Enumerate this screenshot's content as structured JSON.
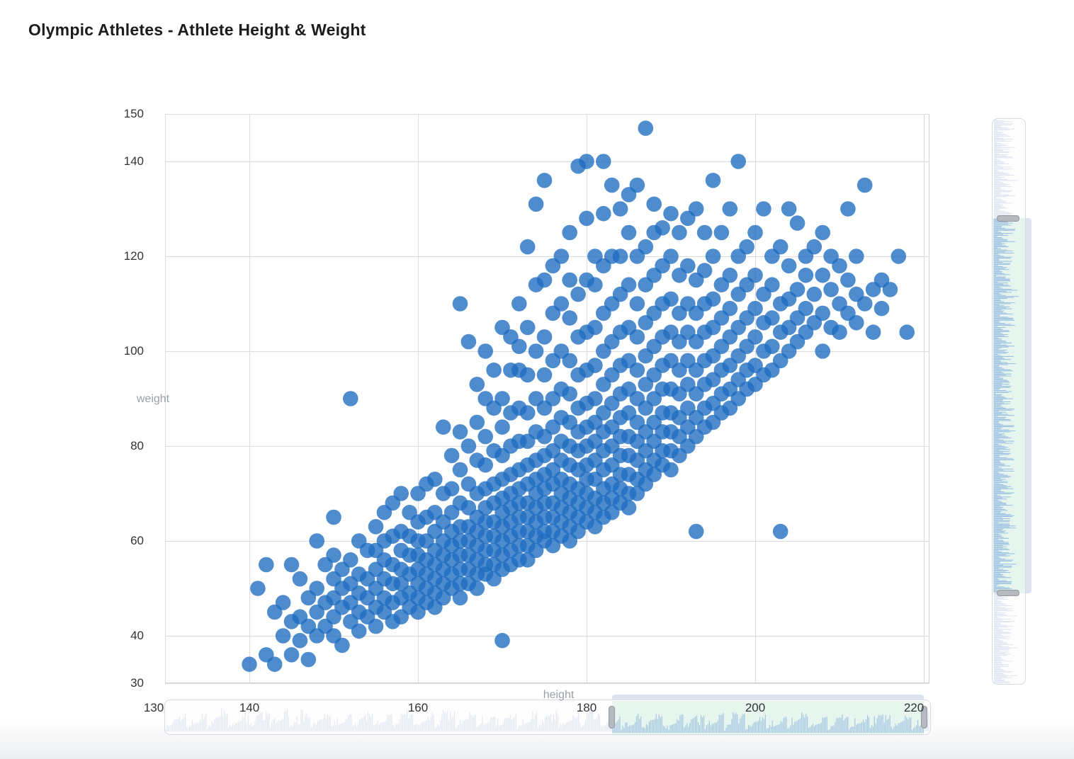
{
  "page": {
    "title": "Olympic Athletes - Athlete Height & Weight"
  },
  "axes": {
    "x_name": "height",
    "y_name": "weight",
    "x_ticks": [
      130,
      140,
      160,
      180,
      200,
      220
    ],
    "y_ticks": [
      150,
      140,
      120,
      100,
      80,
      60,
      40,
      30
    ]
  },
  "datazoom": {
    "x": {
      "start": 183,
      "end": 220
    },
    "y": {
      "start": 49,
      "end": 128
    }
  },
  "colors": {
    "dot": "#1d6cc0",
    "dot_opacity": 0.78,
    "grid": "#dadcdf",
    "plot_border": "#cfd3d7",
    "selected_fill": "#e6f5ed",
    "shadow_unselected": "#e1e5ef",
    "shadow_selected": "#9fc2e2",
    "handle_fill": "#b7b9c1",
    "move_bar": "#dde3f1",
    "tick_text": "#333333",
    "axis_name_text": "#9ba0a7"
  },
  "chart_data": {
    "type": "scatter",
    "title": "Olympic Athletes - Athlete Height & Weight",
    "xlabel": "height",
    "ylabel": "weight",
    "xlim": [
      130,
      220
    ],
    "ylim": [
      30,
      150
    ],
    "grid": true,
    "x_ticks": [
      130,
      140,
      160,
      180,
      200,
      220
    ],
    "y_ticks": [
      30,
      40,
      60,
      80,
      100,
      120,
      140,
      150
    ],
    "points_by_height": {
      "140": [
        34
      ],
      "141": [
        50
      ],
      "142": [
        36,
        55
      ],
      "143": [
        34,
        45
      ],
      "144": [
        40,
        47
      ],
      "145": [
        36,
        43,
        55
      ],
      "146": [
        39,
        44,
        52
      ],
      "147": [
        35,
        42,
        48
      ],
      "148": [
        40,
        45,
        50,
        60
      ],
      "149": [
        42,
        47,
        55
      ],
      "150": [
        40,
        44,
        48,
        52,
        57,
        65
      ],
      "151": [
        38,
        46,
        50,
        54
      ],
      "152": [
        43,
        47,
        51,
        56,
        90
      ],
      "153": [
        41,
        45,
        49,
        53,
        60
      ],
      "154": [
        44,
        48,
        52,
        58
      ],
      "155": [
        42,
        46,
        50,
        54,
        58,
        63
      ],
      "156": [
        45,
        48,
        52,
        56,
        60,
        66
      ],
      "157": [
        43,
        47,
        51,
        55,
        61,
        68
      ],
      "158": [
        44,
        48,
        51,
        54,
        58,
        62,
        70
      ],
      "159": [
        46,
        49,
        53,
        57,
        61,
        66
      ],
      "160": [
        45,
        48,
        51,
        54,
        57,
        60,
        64,
        70
      ],
      "161": [
        47,
        50,
        53,
        56,
        60,
        65,
        72
      ],
      "162": [
        46,
        49,
        52,
        55,
        58,
        62,
        66,
        73
      ],
      "163": [
        48,
        51,
        54,
        57,
        60,
        64,
        70,
        84
      ],
      "164": [
        50,
        53,
        56,
        59,
        62,
        66,
        71,
        78
      ],
      "165": [
        48,
        51,
        54,
        57,
        60,
        63,
        68,
        75,
        83,
        110
      ],
      "166": [
        51,
        54,
        57,
        60,
        63,
        67,
        72,
        80,
        102
      ],
      "167": [
        50,
        53,
        56,
        59,
        62,
        65,
        70,
        77,
        85,
        93
      ],
      "168": [
        53,
        55,
        58,
        61,
        64,
        67,
        71,
        76,
        82,
        90,
        100
      ],
      "169": [
        52,
        55,
        58,
        61,
        64,
        68,
        72,
        79,
        88,
        96
      ],
      "170": [
        39,
        54,
        57,
        60,
        63,
        66,
        69,
        73,
        78,
        84,
        90,
        105
      ],
      "171": [
        55,
        58,
        61,
        64,
        67,
        70,
        74,
        80,
        87,
        96,
        103
      ],
      "172": [
        56,
        59,
        62,
        65,
        68,
        71,
        75,
        81,
        88,
        96,
        101,
        110
      ],
      "173": [
        56,
        59,
        62,
        65,
        68,
        72,
        76,
        81,
        87,
        95,
        105,
        122
      ],
      "174": [
        58,
        61,
        64,
        67,
        70,
        73,
        77,
        83,
        90,
        100,
        114,
        131
      ],
      "175": [
        60,
        62,
        65,
        68,
        71,
        74,
        78,
        82,
        88,
        95,
        103,
        115,
        136
      ],
      "176": [
        59,
        62,
        65,
        68,
        72,
        75,
        79,
        84,
        90,
        98,
        108,
        118
      ],
      "177": [
        61,
        64,
        67,
        70,
        73,
        77,
        81,
        86,
        92,
        100,
        110,
        120
      ],
      "178": [
        60,
        63,
        66,
        69,
        72,
        76,
        80,
        85,
        91,
        98,
        107,
        115,
        125
      ],
      "179": [
        62,
        65,
        68,
        71,
        75,
        79,
        83,
        88,
        95,
        103,
        112,
        139
      ],
      "180": [
        64,
        67,
        70,
        73,
        76,
        80,
        84,
        89,
        96,
        104,
        115,
        128,
        140
      ],
      "181": [
        63,
        66,
        69,
        73,
        77,
        81,
        85,
        90,
        97,
        105,
        114,
        120
      ],
      "182": [
        65,
        68,
        71,
        75,
        79,
        83,
        87,
        93,
        100,
        108,
        118,
        129,
        140
      ],
      "183": [
        66,
        69,
        72,
        76,
        80,
        84,
        89,
        95,
        102,
        110,
        120,
        135
      ],
      "184": [
        68,
        71,
        74,
        78,
        82,
        86,
        91,
        97,
        104,
        112,
        120,
        130
      ],
      "185": [
        67,
        70,
        74,
        78,
        82,
        87,
        92,
        98,
        105,
        114,
        125,
        133
      ],
      "186": [
        70,
        73,
        77,
        81,
        85,
        90,
        96,
        103,
        110,
        120,
        135
      ],
      "187": [
        72,
        75,
        79,
        83,
        88,
        93,
        99,
        106,
        114,
        122,
        147
      ],
      "188": [
        74,
        77,
        81,
        85,
        90,
        95,
        101,
        108,
        116,
        125,
        131
      ],
      "189": [
        76,
        79,
        83,
        87,
        92,
        97,
        103,
        110,
        118,
        126
      ],
      "190": [
        75,
        79,
        83,
        87,
        92,
        98,
        104,
        111,
        120,
        129
      ],
      "191": [
        78,
        82,
        86,
        91,
        96,
        102,
        108,
        116,
        125
      ],
      "192": [
        80,
        84,
        88,
        93,
        98,
        104,
        110,
        118,
        128
      ],
      "193": [
        62,
        82,
        86,
        91,
        96,
        102,
        108,
        115,
        130
      ],
      "194": [
        84,
        88,
        93,
        98,
        104,
        110,
        117,
        125
      ],
      "195": [
        85,
        89,
        94,
        99,
        105,
        111,
        120,
        136
      ],
      "196": [
        87,
        91,
        96,
        101,
        107,
        114,
        125
      ],
      "197": [
        88,
        92,
        97,
        103,
        109,
        116,
        130
      ],
      "198": [
        90,
        94,
        99,
        105,
        112,
        120,
        140
      ],
      "199": [
        92,
        96,
        101,
        107,
        114,
        122
      ],
      "200": [
        93,
        97,
        103,
        109,
        116,
        125
      ],
      "201": [
        95,
        100,
        106,
        112,
        130
      ],
      "202": [
        96,
        101,
        107,
        114,
        120
      ],
      "203": [
        62,
        98,
        104,
        110,
        122
      ],
      "204": [
        100,
        105,
        111,
        118,
        130
      ],
      "205": [
        102,
        107,
        113,
        127
      ],
      "206": [
        104,
        109,
        116,
        120
      ],
      "207": [
        106,
        112,
        122
      ],
      "208": [
        100,
        108,
        116,
        125
      ],
      "209": [
        105,
        113,
        120
      ],
      "210": [
        104,
        110,
        118
      ],
      "211": [
        108,
        115,
        130
      ],
      "212": [
        106,
        112,
        120
      ],
      "213": [
        110,
        135
      ],
      "214": [
        104,
        113
      ],
      "215": [
        109,
        115
      ],
      "216": [
        113
      ],
      "217": [
        120
      ],
      "218": [
        104
      ]
    }
  }
}
